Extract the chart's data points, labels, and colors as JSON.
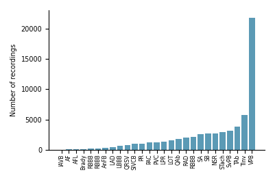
{
  "labels": [
    "IAVB",
    "AF",
    "AFL",
    "Brady",
    "RBBB",
    "RBBB",
    "AnFB",
    "LAD",
    "LBBB",
    "QRSV",
    "SIVCB",
    "PR",
    "PAC",
    "PVC",
    "LPR",
    "LOT",
    "QAb",
    "RAD",
    "RBBB",
    "SA",
    "SB",
    "NSR",
    "STach",
    "SvPB",
    "TAb",
    "TInv",
    "VPB"
  ],
  "values": [
    50,
    80,
    100,
    170,
    220,
    250,
    380,
    490,
    700,
    800,
    1000,
    1050,
    1200,
    1300,
    1400,
    1600,
    1800,
    2000,
    2100,
    2600,
    2700,
    2750,
    2900,
    3200,
    3800,
    5800,
    21800
  ],
  "bar_color": "#5b9ab5",
  "ylabel": "Number of recordings",
  "ylim": [
    0,
    23000
  ],
  "yticks": [
    0,
    5000,
    10000,
    15000,
    20000
  ],
  "figsize": [
    4.01,
    2.63
  ],
  "dpi": 100
}
